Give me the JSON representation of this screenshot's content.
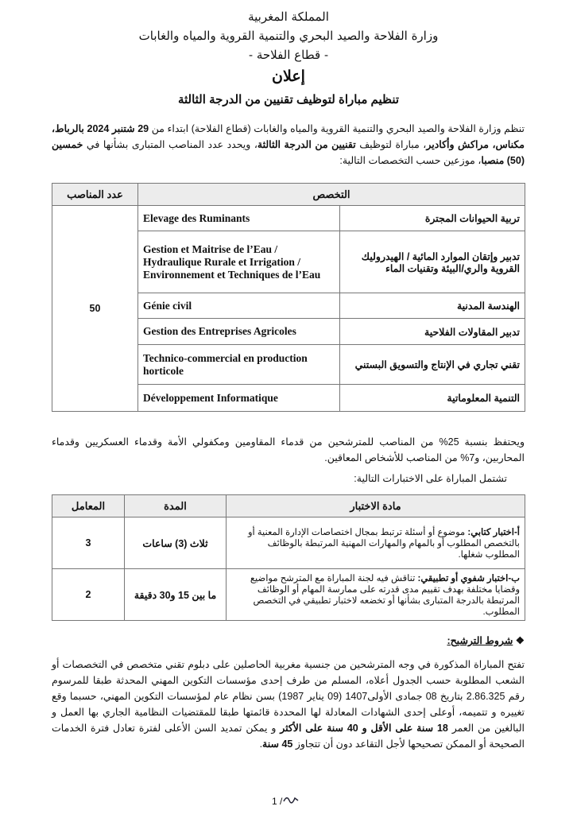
{
  "header": {
    "line1": "المملكة المغربية",
    "line2": "وزارة الفلاحة والصيد البحري والتنمية القروية والمياه والغابات",
    "line3": "- قطاع الفلاحة -",
    "announcement": "إعلان",
    "title": "تنظيم مباراة لتوظيف تقنيين من الدرجة الثالثة"
  },
  "intro": {
    "p1": "تنظم وزارة الفلاحة والصيد البحري والتنمية القروية والمياه والغابات (قطاع الفلاحة) ابتداء من ",
    "date": "29 شتنبر 2024",
    "cities": "بالرباط، مكناس، مراكش وأكادير",
    "p2": "، مباراة لتوظيف ",
    "grade": "تقنيين من الدرجة الثالثة",
    "p3": "، ويحدد عدد المناصب المتبارى بشأنها في ",
    "count": "خمسين (50) منصبا",
    "p4": "، موزعين حسب التخصصات التالية:"
  },
  "posts_table": {
    "col_specialty": "التخصص",
    "col_count": "عدد المناصب",
    "total": "50",
    "rows": [
      {
        "fr": "Elevage des Ruminants",
        "ar": "تربية الحيوانات المجترة"
      },
      {
        "fr": "Gestion et Maitrise de l’Eau / Hydraulique Rurale et Irrigation / Environnement et Techniques de l’Eau",
        "ar": "تدبير وإتقان الموارد المائية / الهيدروليك القروية والري/البيئة وتقنيات الماء"
      },
      {
        "fr": "Génie civil",
        "ar": "الهندسة المدنية"
      },
      {
        "fr": "Gestion des Entreprises Agricoles",
        "ar": "تدبير المقاولات الفلاحية"
      },
      {
        "fr": "Technico-commercial en production horticole",
        "ar": "تقني تجاري في الإنتاج والتسويق البستني"
      },
      {
        "fr": "Développement Informatique",
        "ar": "التنمية المعلوماتية"
      }
    ]
  },
  "quota": "ويحتفظ بنسبة 25% من المناصب للمترشحين من قدماء المقاومين ومكفولي الأمة وقدماء العسكريين وقدماء المحاربين، و7% من المناصب للأشخاص المعاقين.",
  "tests_intro": "تشتمل المباراة على الاختبارات التالية:",
  "tests_table": {
    "col_subject": "مادة الاختبار",
    "col_duration": "المدة",
    "col_coef": "المعامل",
    "rows": [
      {
        "label": "أ-اختبار كتابي:",
        "text": " موضوع أو أسئلة ترتبط بمجال اختصاصات الإدارة المعنية أو بالتخصص المطلوب أو بالمهام والمهارات المهنية المرتبطة بالوظائف المطلوب شغلها.",
        "duration": "ثلاث (3) ساعات",
        "coef": "3"
      },
      {
        "label": "ب-اختبار شفوي أو تطبيقي:",
        "text": " تناقش فيه لجنة المباراة مع المترشح مواضيع وقضايا مختلفة بهدف تقييم مدى قدرته على ممارسة المهام أو الوظائف المرتبطة بالدرجة المتبارى بشأنها أو تخضعه لاختبار تطبيقي في التخصص المطلوب.",
        "duration": "ما بين 15 و30 دقيقة",
        "coef": "2"
      }
    ]
  },
  "conditions": {
    "heading": "شروط الترشيح:",
    "p1": "تفتح المباراة المذكورة في وجه المترشحين من جنسية مغربية الحاصلين على دبلوم تقني متخصص في التخصصات أو الشعب المطلوبة حسب الجدول أعلاه، المسلم من طرف إحدى مؤسسات التكوين المهني المحدثة طبقا للمرسوم رقم 2.86.325 بتاريخ 08 جمادى الأولى1407 (09 يناير 1987) بسن نظام عام لمؤسسات التكوين المهني، حسبما وقع تغييره و تتميمه، أوعلى إحدى الشهادات المعادلة لها المحددة قائمتها طبقا للمقتضيات النظامية الجاري بها العمل و البالغين من العمر ",
    "age": "18 سنة على الأقل و 40 سنة على الأكثر",
    "p2": " و يمكن تمديد السن الأعلى لفترة تعادل فترة الخدمات الصحيحة أو الممكن تصحيحها لأجل التقاعد دون أن تتجاوز ",
    "max": "45 سنة",
    "p3": "."
  },
  "footer": {
    "page": "1 /"
  }
}
